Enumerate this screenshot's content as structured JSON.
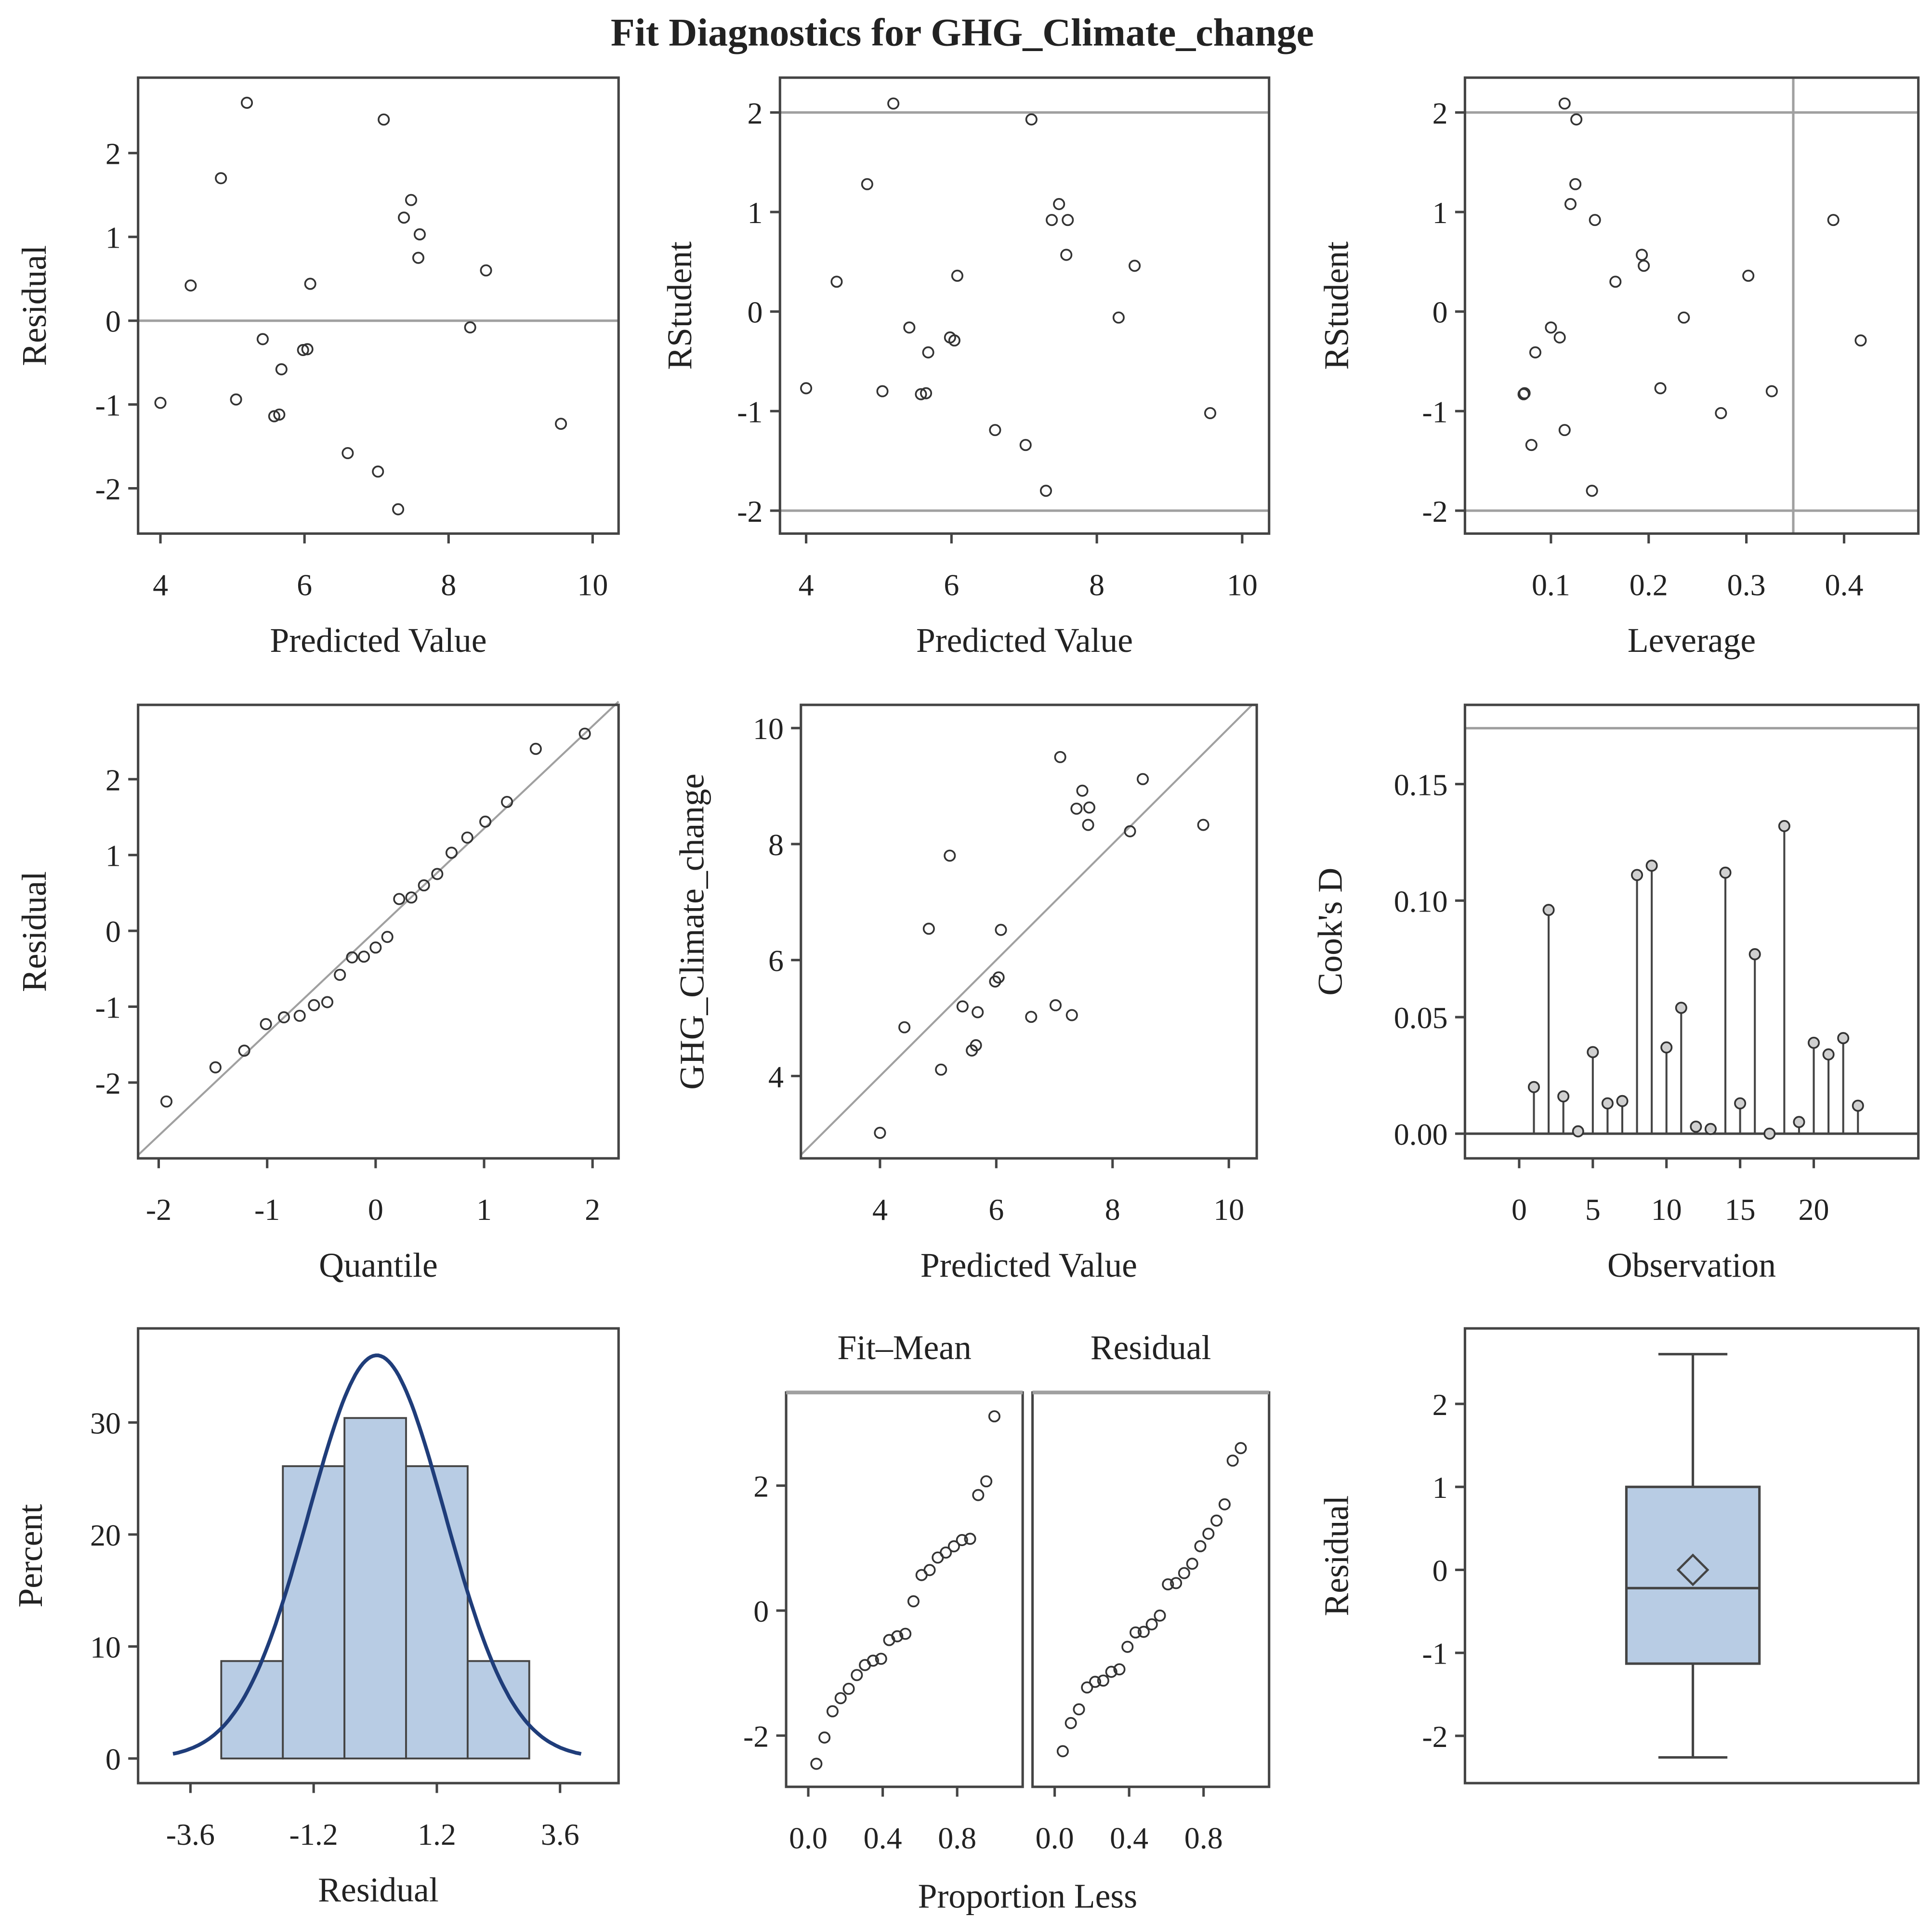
{
  "title": "Fit Diagnostics for GHG_Climate_change",
  "colors": {
    "frame": "#444444",
    "ref": "#a0a0a0",
    "marker": "#333333",
    "fill": "#b8cce4",
    "curve": "#1f3d7a",
    "needle_marker": "#d0d0d0"
  },
  "chart_data": [
    {
      "id": "resid-vs-pred",
      "type": "scatter",
      "xlabel": "Predicted Value",
      "ylabel": "Residual",
      "xlim": [
        3.69,
        10.36
      ],
      "ylim": [
        -2.54,
        2.9
      ],
      "xticks": [
        4,
        6,
        8,
        10
      ],
      "yticks": [
        -2,
        -1,
        0,
        1,
        2
      ],
      "hlines": [
        0
      ],
      "points": [
        [
          4.0,
          -0.98
        ],
        [
          4.42,
          0.42
        ],
        [
          4.84,
          1.7
        ],
        [
          5.05,
          -0.94
        ],
        [
          5.2,
          2.6
        ],
        [
          5.42,
          -0.22
        ],
        [
          5.58,
          -1.14
        ],
        [
          5.65,
          -1.12
        ],
        [
          5.68,
          -0.58
        ],
        [
          5.98,
          -0.35
        ],
        [
          6.04,
          -0.34
        ],
        [
          6.08,
          0.44
        ],
        [
          6.6,
          -1.58
        ],
        [
          7.02,
          -1.8
        ],
        [
          7.1,
          2.4
        ],
        [
          7.3,
          -2.25
        ],
        [
          7.38,
          1.23
        ],
        [
          7.48,
          1.44
        ],
        [
          7.6,
          1.03
        ],
        [
          7.58,
          0.75
        ],
        [
          8.3,
          -0.08
        ],
        [
          8.52,
          0.6
        ],
        [
          9.56,
          -1.23
        ]
      ]
    },
    {
      "id": "rstudent-vs-pred",
      "type": "scatter",
      "xlabel": "Predicted Value",
      "ylabel": "RStudent",
      "xlim": [
        3.64,
        10.37
      ],
      "ylim": [
        -2.23,
        2.35
      ],
      "xticks": [
        4,
        6,
        8,
        10
      ],
      "yticks": [
        -2,
        -1,
        0,
        1,
        2
      ],
      "hlines": [
        -2,
        2
      ],
      "points": [
        [
          4.0,
          -0.77
        ],
        [
          4.42,
          0.3
        ],
        [
          4.84,
          1.28
        ],
        [
          5.05,
          -0.8
        ],
        [
          5.2,
          2.09
        ],
        [
          5.42,
          -0.16
        ],
        [
          5.58,
          -0.83
        ],
        [
          5.65,
          -0.82
        ],
        [
          5.68,
          -0.41
        ],
        [
          5.98,
          -0.26
        ],
        [
          6.04,
          -0.29
        ],
        [
          6.08,
          0.36
        ],
        [
          6.6,
          -1.19
        ],
        [
          7.02,
          -1.34
        ],
        [
          7.1,
          1.93
        ],
        [
          7.3,
          -1.8
        ],
        [
          7.38,
          0.92
        ],
        [
          7.48,
          1.08
        ],
        [
          7.6,
          0.92
        ],
        [
          7.58,
          0.57
        ],
        [
          8.3,
          -0.06
        ],
        [
          8.52,
          0.46
        ],
        [
          9.56,
          -1.02
        ]
      ]
    },
    {
      "id": "rstudent-vs-leverage",
      "type": "scatter",
      "xlabel": "Leverage",
      "ylabel": "RStudent",
      "xlim": [
        0.012,
        0.476
      ],
      "ylim": [
        -2.23,
        2.35
      ],
      "xticks": [
        0.1,
        0.2,
        0.3,
        0.4
      ],
      "yticks": [
        -2,
        -1,
        0,
        1,
        2
      ],
      "hlines": [
        -2,
        2
      ],
      "vlines": [
        0.348
      ],
      "points": [
        [
          0.114,
          2.09
        ],
        [
          0.126,
          1.93
        ],
        [
          0.125,
          1.28
        ],
        [
          0.12,
          1.08
        ],
        [
          0.145,
          0.92
        ],
        [
          0.389,
          0.92
        ],
        [
          0.193,
          0.57
        ],
        [
          0.195,
          0.46
        ],
        [
          0.166,
          0.3
        ],
        [
          0.302,
          0.36
        ],
        [
          0.236,
          -0.06
        ],
        [
          0.1,
          -0.16
        ],
        [
          0.109,
          -0.26
        ],
        [
          0.417,
          -0.29
        ],
        [
          0.084,
          -0.41
        ],
        [
          0.212,
          -0.77
        ],
        [
          0.326,
          -0.8
        ],
        [
          0.072,
          -0.83
        ],
        [
          0.073,
          -0.82
        ],
        [
          0.274,
          -1.02
        ],
        [
          0.114,
          -1.19
        ],
        [
          0.08,
          -1.34
        ],
        [
          0.142,
          -1.8
        ]
      ]
    },
    {
      "id": "qq-plot",
      "type": "scatter",
      "xlabel": "Quantile",
      "ylabel": "Residual",
      "xlim": [
        -2.19,
        2.24
      ],
      "ylim": [
        -3.0,
        2.98
      ],
      "xticks": [
        -2,
        -1,
        0,
        1,
        2
      ],
      "yticks": [
        -2,
        -1,
        0,
        1,
        2
      ],
      "ref_line": {
        "intercept": 0,
        "slope": 1.35
      }
    },
    {
      "id": "observed-vs-pred",
      "type": "scatter",
      "xlabel": "Predicted Value",
      "ylabel": "GHG_Climate_change",
      "xlim": [
        2.64,
        10.48
      ],
      "ylim": [
        2.58,
        10.4
      ],
      "xticks": [
        4,
        6,
        8,
        10
      ],
      "yticks": [
        4,
        6,
        8,
        10
      ],
      "diagonal": true
    },
    {
      "id": "cooks-d",
      "type": "needle",
      "xlabel": "Observation",
      "ylabel": "Cook's D",
      "xlim": [
        -3.68,
        27.1
      ],
      "ylim": [
        -0.0106,
        0.184
      ],
      "xticks": [
        0,
        5,
        10,
        15,
        20
      ],
      "yticks": [
        0,
        0.05,
        0.1,
        0.15
      ],
      "ytick_labels": [
        "0.00",
        "0.05",
        "0.10",
        "0.15"
      ],
      "hlines": [
        0.174
      ],
      "values": [
        0.02,
        0.096,
        0.016,
        0.001,
        0.035,
        0.013,
        0.014,
        0.111,
        0.115,
        0.037,
        0.054,
        0.003,
        0.002,
        0.112,
        0.013,
        0.077,
        0.0,
        0.132,
        0.005,
        0.039,
        0.034,
        0.041,
        0.012
      ]
    },
    {
      "id": "residual-histogram",
      "type": "bar",
      "xlabel": "Residual",
      "ylabel": "Percent",
      "xlim": [
        -4.62,
        4.74
      ],
      "ylim": [
        -2.2,
        38.4
      ],
      "xticks": [
        -3.6,
        -1.2,
        1.2,
        3.6
      ],
      "yticks": [
        0,
        10,
        20,
        30
      ],
      "bin_centers": [
        -2.4,
        -1.2,
        0,
        1.2,
        2.4
      ],
      "bin_width": 1.2,
      "values": [
        8.7,
        26.1,
        30.4,
        26.1,
        8.7
      ],
      "normal_curve": {
        "mean": 0.03,
        "sd": 1.33
      }
    },
    {
      "id": "residual-fit-spread",
      "type": "scatter",
      "xlabel": "Proportion Less",
      "panel_labels": [
        "Fit–Mean",
        "Residual"
      ],
      "xlim": [
        -0.119,
        1.152
      ],
      "ylim": [
        -2.82,
        3.49
      ],
      "xticks": [
        0,
        0.4,
        0.8
      ],
      "xtick_labels": [
        "0.0",
        "0.4",
        "0.8"
      ],
      "yticks": [
        -2,
        0,
        2
      ]
    },
    {
      "id": "residual-boxplot",
      "type": "box",
      "ylabel": "Residual",
      "ylim": [
        -2.57,
        2.91
      ],
      "yticks": [
        -2,
        -1,
        0,
        1,
        2
      ],
      "stats": {
        "min": -2.26,
        "q1": -1.13,
        "median": -0.22,
        "q3": 1.0,
        "max": 2.6,
        "mean": 0.0
      }
    }
  ]
}
